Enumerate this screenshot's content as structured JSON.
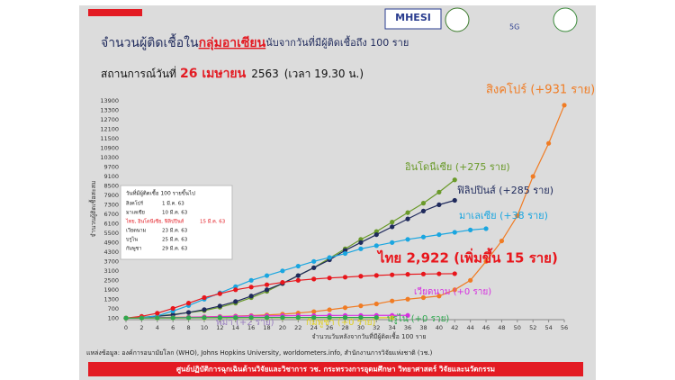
{
  "chart_data": {
    "type": "line",
    "title_parts": [
      "จำนวนผู้ติดเชื้อใน",
      "กลุ่มอาเซียน",
      "นับจากวันที่มีผู้ติดเชื้อถึง 100 ราย"
    ],
    "subtitle_parts": [
      "สถานการณ์วันที่",
      "26 เมษายน",
      "2563",
      "(เวลา 19.30 น.)"
    ],
    "logos": [
      "MHESI",
      "5G"
    ],
    "y_label": "จำนวนผู้ติดเชื้อสะสม",
    "x_label": "จำนวนวันหลังจากวันที่มีผู้ติดเชื้อ 100 ราย",
    "xlim": [
      0,
      56
    ],
    "ylim": [
      0,
      13900
    ],
    "xticks": [
      0,
      2,
      4,
      6,
      8,
      10,
      12,
      14,
      16,
      18,
      20,
      22,
      24,
      26,
      28,
      30,
      32,
      34,
      36,
      38,
      40,
      42,
      44,
      46,
      48,
      50,
      52,
      54,
      56
    ],
    "yticks": [
      100,
      700,
      1300,
      1900,
      2500,
      3100,
      3700,
      4300,
      4900,
      5500,
      6100,
      6700,
      7300,
      7900,
      8500,
      9100,
      9700,
      10300,
      10900,
      11500,
      12100,
      12700,
      13300,
      13900
    ],
    "series": [
      {
        "name": "สิงคโปร์ (+931 ราย)",
        "color": "#f07c24",
        "x": [
          0,
          2,
          4,
          6,
          8,
          10,
          12,
          14,
          16,
          18,
          20,
          22,
          24,
          26,
          28,
          30,
          32,
          34,
          36,
          38,
          40,
          42,
          44,
          46,
          48,
          50,
          52,
          54,
          56
        ],
        "values": [
          100,
          110,
          130,
          150,
          160,
          180,
          200,
          230,
          260,
          300,
          350,
          420,
          510,
          630,
          760,
          880,
          1000,
          1190,
          1300,
          1400,
          1500,
          1900,
          2500,
          3700,
          5000,
          6600,
          9100,
          11200,
          13624
        ]
      },
      {
        "name": "อินโดนีเซีย (+275 ราย)",
        "color": "#6a9a2a",
        "x": [
          0,
          2,
          4,
          6,
          8,
          10,
          12,
          14,
          16,
          18,
          20,
          22,
          24,
          26,
          28,
          30,
          32,
          34,
          36,
          38,
          40,
          42
        ],
        "values": [
          100,
          150,
          230,
          340,
          450,
          580,
          790,
          1050,
          1400,
          1800,
          2300,
          2800,
          3300,
          3900,
          4500,
          5100,
          5600,
          6200,
          6800,
          7400,
          8100,
          8882
        ]
      },
      {
        "name": "ฟิลิปปินส์ (+285 ราย)",
        "color": "#1f2a5c",
        "x": [
          0,
          2,
          4,
          6,
          8,
          10,
          12,
          14,
          16,
          18,
          20,
          22,
          24,
          26,
          28,
          30,
          32,
          34,
          36,
          38,
          40,
          42
        ],
        "values": [
          100,
          140,
          210,
          300,
          460,
          640,
          870,
          1150,
          1500,
          1900,
          2300,
          2800,
          3300,
          3800,
          4400,
          4900,
          5400,
          5900,
          6400,
          6900,
          7300,
          7579
        ]
      },
      {
        "name": "มาเลเซีย (+38 ราย)",
        "color": "#1aa6e0",
        "x": [
          0,
          2,
          4,
          6,
          8,
          10,
          12,
          14,
          16,
          18,
          20,
          22,
          24,
          26,
          28,
          30,
          32,
          34,
          36,
          38,
          40,
          42,
          44,
          46
        ],
        "values": [
          100,
          130,
          240,
          550,
          900,
          1300,
          1700,
          2100,
          2500,
          2800,
          3100,
          3400,
          3700,
          3950,
          4200,
          4500,
          4700,
          4900,
          5100,
          5250,
          5400,
          5550,
          5700,
          5780
        ]
      },
      {
        "name": "ไทย 2,922 (เพิ่มขึ้น 15 ราย)",
        "color": "#e8161c",
        "x": [
          0,
          2,
          4,
          6,
          8,
          10,
          12,
          14,
          16,
          18,
          20,
          22,
          24,
          26,
          28,
          30,
          32,
          34,
          36,
          38,
          40,
          42
        ],
        "values": [
          100,
          210,
          410,
          720,
          1050,
          1400,
          1650,
          1900,
          2070,
          2220,
          2370,
          2500,
          2580,
          2650,
          2700,
          2760,
          2810,
          2850,
          2880,
          2900,
          2915,
          2922
        ]
      },
      {
        "name": "เวียดนาม (+0 ราย)",
        "color": "#d62ee0",
        "x": [
          0,
          2,
          4,
          6,
          8,
          10,
          12,
          14,
          16,
          18,
          20,
          22,
          24,
          26,
          28,
          30,
          32,
          34,
          36
        ],
        "values": [
          100,
          110,
          120,
          130,
          150,
          170,
          190,
          210,
          230,
          240,
          250,
          260,
          262,
          265,
          267,
          268,
          270,
          270,
          270
        ]
      },
      {
        "name": "พม่า (+2 ราย)",
        "color": "#9a7fc0",
        "x": [
          0,
          2,
          4,
          6,
          8,
          10,
          12,
          14,
          16,
          18,
          20,
          22,
          24,
          26
        ],
        "values": [
          100,
          105,
          110,
          115,
          120,
          125,
          130,
          135,
          140,
          142,
          144,
          145,
          146,
          146
        ]
      },
      {
        "name": "กัมพูชา (+0 ราย)",
        "color": "#e0d020",
        "x": [
          0,
          2,
          4,
          6,
          8,
          10,
          12,
          14,
          16,
          18,
          20,
          22,
          24,
          26,
          28,
          30,
          32,
          34
        ],
        "values": [
          100,
          103,
          106,
          109,
          111,
          113,
          115,
          116,
          117,
          118,
          119,
          120,
          120,
          121,
          121,
          122,
          122,
          122
        ]
      },
      {
        "name": "บรูไน (+0 ราย)",
        "color": "#2fa84f",
        "x": [
          0,
          2,
          4,
          6,
          8,
          10,
          12,
          14,
          16,
          18,
          20,
          22,
          24,
          26,
          28,
          30,
          32
        ],
        "values": [
          100,
          105,
          110,
          115,
          120,
          125,
          128,
          130,
          132,
          134,
          135,
          136,
          136,
          137,
          137,
          138,
          138
        ]
      }
    ],
    "inset": {
      "heading": "วันที่มีผู้ติดเชื้อ 100 รายขึ้นไป",
      "rows": [
        [
          "สิงคโปร์",
          "1 มี.ค. 63"
        ],
        [
          "มาเลเซีย",
          "10 มี.ค. 63"
        ],
        [
          "ไทย, อินโดนีเซีย, ฟิลิปปินส์",
          "15 มี.ค. 63"
        ],
        [
          "เวียดนาม",
          "23 มี.ค. 63"
        ],
        [
          "บรูไน",
          "25 มี.ค. 63"
        ],
        [
          "กัมพูชา",
          "29 มี.ค. 63"
        ]
      ]
    },
    "source": "แหล่งข้อมูล: องค์การอนามัยโลก (WHO), Johns Hopkins University, worldometers.info, สำนักงานการวิจัยแห่งชาติ (วช.)",
    "footer": "ศูนย์ปฏิบัติการฉุกเฉินด้านวิจัยและวิชาการ   วช.  กระทรวงการอุดมศึกษา วิทยาศาสตร์ วิจัยและนวัตกรรม"
  }
}
